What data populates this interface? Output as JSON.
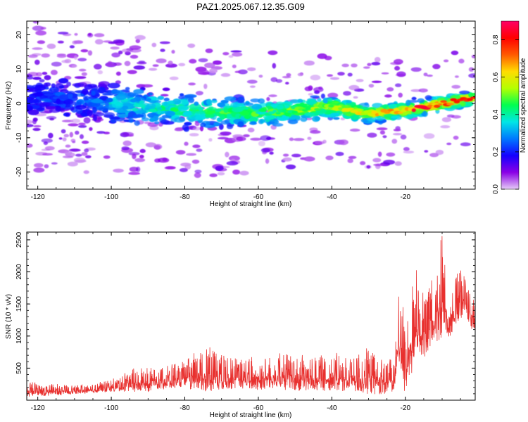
{
  "figure": {
    "title": "PAZ1.2025.067.12.35.G09"
  },
  "chart_data": [
    {
      "type": "heatmap",
      "xlabel": "Height of straight line (km)",
      "ylabel": "Frequency (Hz)",
      "xlim": [
        -123,
        -1
      ],
      "ylim": [
        -25,
        24
      ],
      "x_ticks": [
        -120,
        -100,
        -80,
        -60,
        -40,
        -20
      ],
      "x_tick_labels": [
        "-120",
        "-100",
        "-80",
        "-60",
        "-40",
        "-20"
      ],
      "y_ticks": [
        -20,
        -10,
        0,
        10,
        20
      ],
      "y_tick_labels": [
        "-20",
        "-10",
        "0",
        "10",
        "20"
      ],
      "colorbar": {
        "label": "Normalized spectral amplitude",
        "range": [
          0,
          0.9
        ],
        "ticks": [
          0,
          0.2,
          0.4,
          0.6,
          0.8
        ],
        "tick_labels": [
          "0.0",
          "0.2",
          "0.4",
          "0.6",
          "0.8"
        ],
        "colormap": [
          "#e6ccf7",
          "#8a00e6",
          "#1400ff",
          "#0078ff",
          "#00e6e6",
          "#00ff50",
          "#b4ff00",
          "#ffdc00",
          "#ff5a00",
          "#ff0000",
          "#ff0066"
        ]
      },
      "ridge": {
        "x": [
          -120,
          -100,
          -80,
          -60,
          -40,
          -30,
          -20,
          -10,
          -2
        ],
        "frequency": [
          2,
          0,
          -2,
          -3,
          -1,
          -3,
          -2,
          0,
          1.5
        ]
      },
      "grid": false
    },
    {
      "type": "line",
      "xlabel": "Height of straight line (km)",
      "ylabel": "SNR (10 * v/v)",
      "xlim": [
        -123,
        -1
      ],
      "ylim": [
        0,
        2620
      ],
      "x_ticks": [
        -120,
        -100,
        -80,
        -60,
        -40,
        -20
      ],
      "x_tick_labels": [
        "-120",
        "-100",
        "-80",
        "-60",
        "-40",
        "-20"
      ],
      "y_ticks": [
        500,
        1000,
        1500,
        2000,
        2500
      ],
      "y_tick_labels": [
        "500",
        "1000",
        "1500",
        "2000",
        "2500"
      ],
      "color": "#e8302e",
      "envelope": {
        "x": [
          -123,
          -110,
          -100,
          -95,
          -90,
          -85,
          -80,
          -75,
          -70,
          -65,
          -60,
          -55,
          -50,
          -45,
          -40,
          -35,
          -30,
          -25,
          -23,
          -22,
          -20,
          -17,
          -15,
          -12,
          -10,
          -8,
          -6,
          -4,
          -2,
          -1
        ],
        "baseline": [
          100,
          120,
          170,
          200,
          220,
          250,
          270,
          290,
          280,
          270,
          260,
          280,
          260,
          250,
          270,
          250,
          240,
          200,
          210,
          900,
          280,
          1000,
          850,
          1100,
          1300,
          1100,
          1350,
          1500,
          1200,
          1150
        ],
        "peak": [
          300,
          230,
          320,
          480,
          560,
          560,
          600,
          950,
          770,
          650,
          700,
          750,
          720,
          700,
          750,
          700,
          820,
          650,
          650,
          1750,
          1400,
          2100,
          1700,
          2000,
          2620,
          1700,
          2000,
          2250,
          1650,
          1500
        ]
      },
      "grid": false
    }
  ]
}
